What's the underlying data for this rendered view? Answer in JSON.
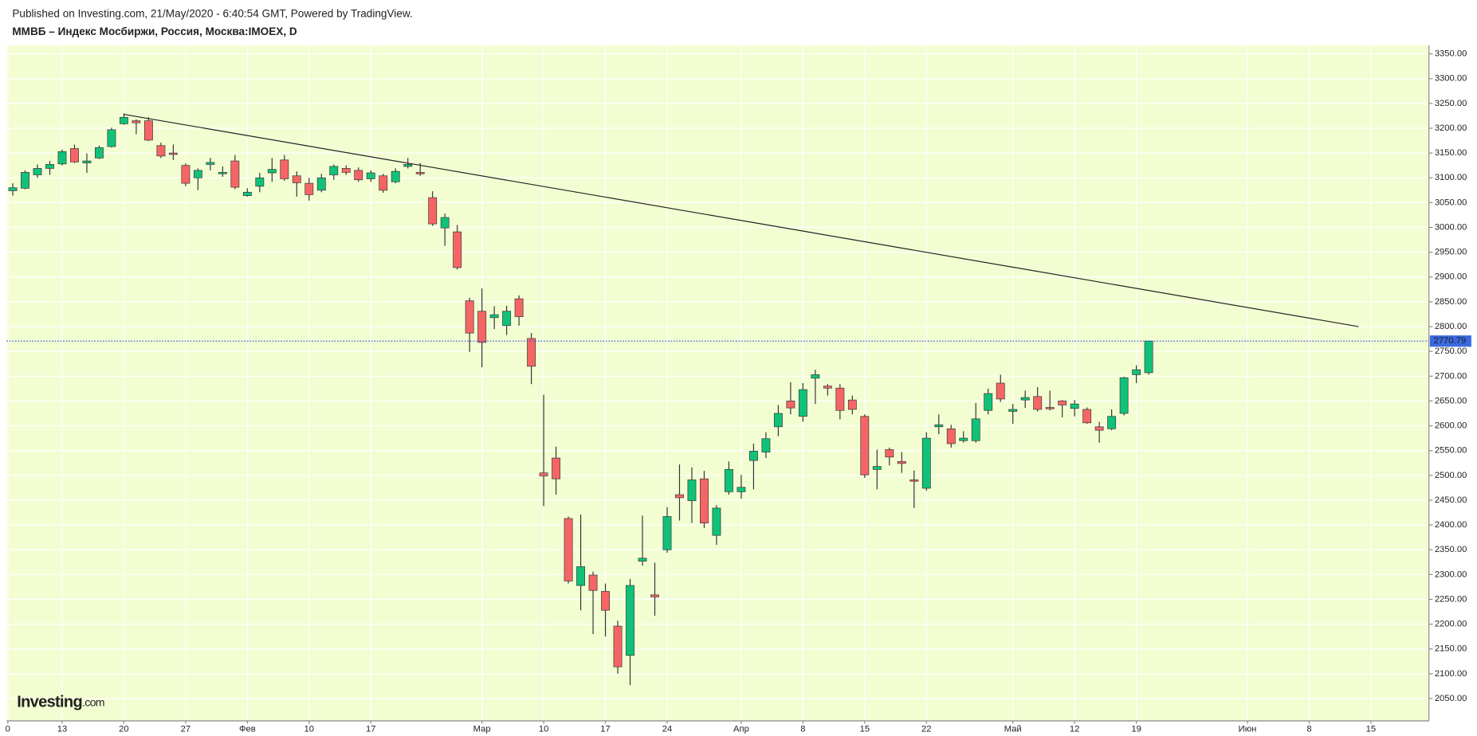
{
  "chart_data": {
    "type": "candlestick",
    "published": "Published on Investing.com, 21/May/2020 - 6:40:54 GMT, Powered by TradingView.",
    "title": "ММВБ – Индекс Мосбиржи, Россия, Москва:IMOEX, D",
    "watermark_brand": "Investing",
    "watermark_suffix": ".com",
    "up_color": "#10c279",
    "down_color": "#f66565",
    "grid": true,
    "open": [
      3074,
      3079,
      3106,
      3119,
      3128,
      3159,
      3130,
      3140,
      3163,
      3209,
      3215,
      3215,
      3165,
      3150,
      3125,
      3100,
      3127,
      3110,
      3134,
      3064,
      3083,
      3110,
      3136,
      3104,
      3089,
      3075,
      3106,
      3119,
      3115,
      3098,
      3104,
      3092,
      3123,
      3111,
      3060,
      2999,
      2991,
      2852,
      2831,
      2818,
      2802,
      2856,
      2776,
      2505,
      2535,
      2413,
      2278,
      2299,
      2266,
      2196,
      2137,
      2327,
      2259,
      2350,
      2461,
      2449,
      2493,
      2379,
      2467,
      2467,
      2530,
      2547,
      2598,
      2650,
      2619,
      2696,
      2680,
      2676,
      2652,
      2619,
      2512,
      2552,
      2528,
      2491,
      2474,
      2598,
      2594,
      2570,
      2570,
      2631,
      2686,
      2629,
      2652,
      2659,
      2637,
      2650,
      2635,
      2633,
      2598,
      2594,
      2625,
      2703,
      2707
    ],
    "high": [
      3089,
      3115,
      3127,
      3134,
      3157,
      3167,
      3149,
      3165,
      3201,
      3230,
      3218,
      3222,
      3171,
      3167,
      3129,
      3119,
      3140,
      3123,
      3146,
      3079,
      3110,
      3140,
      3146,
      3113,
      3100,
      3108,
      3127,
      3125,
      3121,
      3115,
      3108,
      3119,
      3140,
      3130,
      3073,
      3028,
      3005,
      2858,
      2877,
      2841,
      2842,
      2863,
      2787,
      2663,
      2558,
      2417,
      2421,
      2306,
      2282,
      2207,
      2291,
      2419,
      2324,
      2436,
      2522,
      2516,
      2509,
      2440,
      2528,
      2501,
      2564,
      2587,
      2642,
      2688,
      2686,
      2713,
      2684,
      2684,
      2661,
      2623,
      2552,
      2556,
      2547,
      2510,
      2587,
      2623,
      2602,
      2589,
      2646,
      2675,
      2703,
      2644,
      2671,
      2678,
      2671,
      2652,
      2652,
      2637,
      2608,
      2633,
      2699,
      2722,
      2772
    ],
    "low": [
      3064,
      3077,
      3100,
      3106,
      3125,
      3130,
      3110,
      3138,
      3161,
      3207,
      3188,
      3174,
      3140,
      3136,
      3083,
      3075,
      3115,
      3102,
      3077,
      3062,
      3071,
      3092,
      3094,
      3062,
      3054,
      3071,
      3096,
      3106,
      3092,
      3092,
      3070,
      3089,
      3119,
      3104,
      3003,
      2963,
      2915,
      2749,
      2718,
      2795,
      2783,
      2802,
      2684,
      2438,
      2461,
      2282,
      2228,
      2180,
      2175,
      2100,
      2077,
      2318,
      2217,
      2344,
      2409,
      2404,
      2394,
      2360,
      2461,
      2453,
      2472,
      2535,
      2579,
      2623,
      2608,
      2644,
      2661,
      2613,
      2623,
      2495,
      2472,
      2520,
      2505,
      2434,
      2469,
      2583,
      2556,
      2566,
      2566,
      2623,
      2648,
      2604,
      2636,
      2629,
      2631,
      2617,
      2619,
      2604,
      2566,
      2591,
      2621,
      2686,
      2703
    ],
    "close": [
      3080,
      3111,
      3119,
      3127,
      3153,
      3132,
      3134,
      3161,
      3197,
      3222,
      3211,
      3176,
      3144,
      3148,
      3089,
      3115,
      3131,
      3111,
      3081,
      3071,
      3100,
      3117,
      3098,
      3090,
      3066,
      3100,
      3123,
      3111,
      3096,
      3110,
      3075,
      3113,
      3127,
      3108,
      3007,
      3020,
      2919,
      2787,
      2768,
      2824,
      2831,
      2820,
      2720,
      2499,
      2493,
      2287,
      2316,
      2268,
      2228,
      2114,
      2278,
      2333,
      2255,
      2417,
      2455,
      2491,
      2404,
      2434,
      2512,
      2476,
      2549,
      2574,
      2625,
      2636,
      2673,
      2703,
      2676,
      2631,
      2633,
      2501,
      2518,
      2537,
      2524,
      2489,
      2575,
      2602,
      2564,
      2575,
      2614,
      2665,
      2654,
      2633,
      2657,
      2633,
      2635,
      2642,
      2644,
      2606,
      2591,
      2619,
      2697,
      2713,
      2770.79
    ],
    "last_price": 2770.79,
    "trendline": {
      "x": [
        9,
        109
      ],
      "y": [
        3228,
        2800
      ]
    },
    "xlim": [
      -0.5,
      114.7
    ],
    "xticks": [
      {
        "value": -0.4,
        "label": "0"
      },
      {
        "value": 4,
        "label": "13"
      },
      {
        "value": 9,
        "label": "20"
      },
      {
        "value": 14,
        "label": "27"
      },
      {
        "value": 19,
        "label": "Фев"
      },
      {
        "value": 24,
        "label": "10"
      },
      {
        "value": 29,
        "label": "17"
      },
      {
        "value": 38,
        "label": "Мар"
      },
      {
        "value": 43,
        "label": "10"
      },
      {
        "value": 48,
        "label": "17"
      },
      {
        "value": 53,
        "label": "24"
      },
      {
        "value": 59,
        "label": "Апр"
      },
      {
        "value": 64,
        "label": "8"
      },
      {
        "value": 69,
        "label": "15"
      },
      {
        "value": 74,
        "label": "22"
      },
      {
        "value": 81,
        "label": "Май"
      },
      {
        "value": 86,
        "label": "12"
      },
      {
        "value": 91,
        "label": "19"
      },
      {
        "value": 100,
        "label": "Июн"
      },
      {
        "value": 105,
        "label": "8"
      },
      {
        "value": 110,
        "label": "15"
      }
    ],
    "ylim": [
      2005,
      3367
    ],
    "yticks": [
      {
        "value": 2050,
        "label": "2050.00"
      },
      {
        "value": 2100,
        "label": "2100.00"
      },
      {
        "value": 2150,
        "label": "2150.00"
      },
      {
        "value": 2200,
        "label": "2200.00"
      },
      {
        "value": 2250,
        "label": "2250.00"
      },
      {
        "value": 2300,
        "label": "2300.00"
      },
      {
        "value": 2350,
        "label": "2350.00"
      },
      {
        "value": 2400,
        "label": "2400.00"
      },
      {
        "value": 2450,
        "label": "2450.00"
      },
      {
        "value": 2500,
        "label": "2500.00"
      },
      {
        "value": 2550,
        "label": "2550.00"
      },
      {
        "value": 2600,
        "label": "2600.00"
      },
      {
        "value": 2650,
        "label": "2650.00"
      },
      {
        "value": 2700,
        "label": "2700.00"
      },
      {
        "value": 2750,
        "label": "2750.00"
      },
      {
        "value": 2800,
        "label": "2800.00"
      },
      {
        "value": 2850,
        "label": "2850.00"
      },
      {
        "value": 2900,
        "label": "2900.00"
      },
      {
        "value": 2950,
        "label": "2950.00"
      },
      {
        "value": 3000,
        "label": "3000.00"
      },
      {
        "value": 3050,
        "label": "3050.00"
      },
      {
        "value": 3100,
        "label": "3100.00"
      },
      {
        "value": 3150,
        "label": "3150.00"
      },
      {
        "value": 3200,
        "label": "3200.00"
      },
      {
        "value": 3250,
        "label": "3250.00"
      },
      {
        "value": 3300,
        "label": "3300.00"
      },
      {
        "value": 3350,
        "label": "3350.00"
      }
    ]
  }
}
